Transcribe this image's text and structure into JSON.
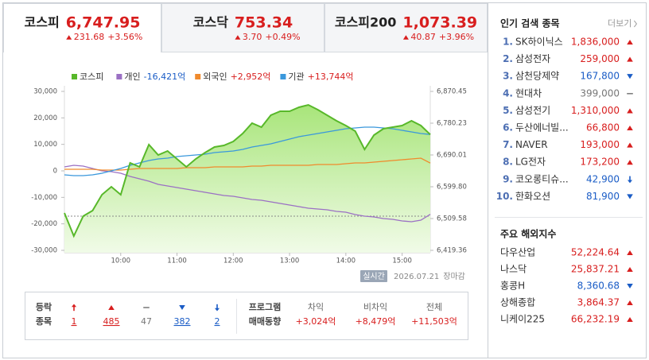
{
  "tabs": [
    {
      "name": "코스피",
      "value": "6,747.95",
      "change": "231.68",
      "rate": "+3.56%",
      "dir": "up",
      "selected": true
    },
    {
      "name": "코스닥",
      "value": "753.34",
      "change": "3.70",
      "rate": "+0.49%",
      "dir": "up",
      "selected": false
    },
    {
      "name": "코스피200",
      "value": "1,073.39",
      "change": "40.87",
      "rate": "+3.96%",
      "dir": "up",
      "selected": false
    }
  ],
  "chart_data": {
    "type": "line",
    "x": [
      "09:00",
      "09:10",
      "09:20",
      "09:30",
      "09:40",
      "09:50",
      "10:00",
      "10:10",
      "10:20",
      "10:30",
      "10:40",
      "10:50",
      "11:00",
      "11:10",
      "11:20",
      "11:30",
      "11:40",
      "11:50",
      "12:00",
      "12:10",
      "12:20",
      "12:30",
      "12:40",
      "12:50",
      "13:00",
      "13:10",
      "13:20",
      "13:30",
      "13:40",
      "13:50",
      "14:00",
      "14:10",
      "14:20",
      "14:30",
      "14:40",
      "14:50",
      "15:00",
      "15:10",
      "15:20",
      "15:30"
    ],
    "xlim": [
      "09:00",
      "15:30"
    ],
    "xticks": [
      "10:00",
      "11:00",
      "12:00",
      "13:00",
      "14:00",
      "15:00"
    ],
    "ylim": [
      -30000,
      30000
    ],
    "yticks": [
      {
        "value": 30000,
        "label": "30,000"
      },
      {
        "value": 20000,
        "label": "20,000"
      },
      {
        "value": 10000,
        "label": "10,000"
      },
      0,
      {
        "value": -10000,
        "label": "-10,000"
      },
      {
        "value": -20000,
        "label": "-20,000"
      },
      {
        "value": -30000,
        "label": "-30,000"
      }
    ],
    "y2lim": [
      6419.36,
      6870.45
    ],
    "y2ticks": [
      {
        "value": 6870.45,
        "label": "6,870.45"
      },
      {
        "value": 6780.23,
        "label": "6,780.23"
      },
      {
        "value": 6690.01,
        "label": "6,690.01"
      },
      {
        "value": 6599.8,
        "label": "6,599.80"
      },
      {
        "value": 6509.58,
        "label": "6,509.58"
      },
      {
        "value": 6419.36,
        "label": "6,419.36"
      }
    ],
    "prev_close": 6516.27,
    "series": [
      {
        "name": "코스피",
        "color": "#58b82a",
        "axis": "y2",
        "area": true,
        "values": [
          6525.4,
          6460.0,
          6516.3,
          6532.1,
          6577.2,
          6599.8,
          6577.2,
          6667.5,
          6656.2,
          6719.3,
          6690.0,
          6701.3,
          6678.7,
          6656.2,
          6678.7,
          6696.8,
          6712.6,
          6717.1,
          6728.4,
          6751.0,
          6780.2,
          6769.0,
          6802.8,
          6814.1,
          6814.1,
          6825.3,
          6832.1,
          6818.6,
          6802.8,
          6787.0,
          6773.5,
          6757.7,
          6705.8,
          6746.4,
          6764.5,
          6769.0,
          6773.5,
          6787.0,
          6773.5,
          6747.95
        ]
      },
      {
        "name": "개인",
        "net_label": "-16,421억",
        "net_dir": "down",
        "color": "#9b70c4",
        "values": [
          1500,
          2100,
          1800,
          900,
          0,
          -300,
          -900,
          -2100,
          -3000,
          -3900,
          -5100,
          -5700,
          -6300,
          -6900,
          -7500,
          -8100,
          -8700,
          -9300,
          -9600,
          -10200,
          -10800,
          -11100,
          -11700,
          -12300,
          -12900,
          -13500,
          -14100,
          -14400,
          -14700,
          -15300,
          -15600,
          -16500,
          -17100,
          -17400,
          -18000,
          -18300,
          -18900,
          -19200,
          -18600,
          -16421
        ]
      },
      {
        "name": "외국인",
        "net_label": "+2,952억",
        "net_dir": "up",
        "color": "#f08a2c",
        "values": [
          600,
          600,
          600,
          600,
          300,
          300,
          300,
          600,
          900,
          900,
          900,
          900,
          900,
          1200,
          1200,
          1200,
          1500,
          1500,
          1500,
          1500,
          1800,
          1800,
          2100,
          2100,
          2100,
          2100,
          2100,
          2400,
          2400,
          2400,
          2700,
          3000,
          3000,
          3300,
          3600,
          3900,
          4200,
          4500,
          4800,
          2952
        ]
      },
      {
        "name": "기관",
        "net_label": "+13,744억",
        "net_dir": "up",
        "color": "#3a98dc",
        "values": [
          -1500,
          -1800,
          -1800,
          -1500,
          -900,
          0,
          900,
          2100,
          3000,
          3900,
          4500,
          4800,
          5400,
          5700,
          6000,
          6300,
          6900,
          7200,
          7500,
          8100,
          9000,
          9600,
          10200,
          11100,
          12000,
          12900,
          13500,
          14100,
          14700,
          15300,
          15900,
          16200,
          16500,
          16500,
          16200,
          15900,
          15300,
          14700,
          14100,
          13744
        ]
      }
    ],
    "status_badge": "실시간",
    "date": "2026.07.21",
    "status": "장마감"
  },
  "breadth": {
    "label_lines": [
      "등락",
      "종목"
    ],
    "items": [
      {
        "dir": "limit_up",
        "count": "1"
      },
      {
        "dir": "up",
        "count": "485"
      },
      {
        "dir": "flat",
        "count": "47"
      },
      {
        "dir": "down",
        "count": "382"
      },
      {
        "dir": "limit_down",
        "count": "2"
      }
    ]
  },
  "program": {
    "label_lines": [
      "프로그램",
      "매매동향"
    ],
    "items": [
      {
        "name": "차익",
        "value": "+3,024억"
      },
      {
        "name": "비차익",
        "value": "+8,479억"
      },
      {
        "name": "전체",
        "value": "+11,503억"
      }
    ]
  },
  "popular": {
    "title": "인기 검색 종목",
    "more": "더보기",
    "items": [
      {
        "rank": "1.",
        "name": "SK하이닉스",
        "price": "1,836,000",
        "dir": "up"
      },
      {
        "rank": "2.",
        "name": "삼성전자",
        "price": "259,000",
        "dir": "up"
      },
      {
        "rank": "3.",
        "name": "삼천당제약",
        "price": "167,800",
        "dir": "down"
      },
      {
        "rank": "4.",
        "name": "현대차",
        "price": "399,000",
        "dir": "flat"
      },
      {
        "rank": "5.",
        "name": "삼성전기",
        "price": "1,310,000",
        "dir": "up"
      },
      {
        "rank": "6.",
        "name": "두산에너빌...",
        "price": "66,800",
        "dir": "up"
      },
      {
        "rank": "7.",
        "name": "NAVER",
        "price": "193,000",
        "dir": "up"
      },
      {
        "rank": "8.",
        "name": "LG전자",
        "price": "173,200",
        "dir": "up"
      },
      {
        "rank": "9.",
        "name": "코오롱티슈...",
        "price": "42,900",
        "dir": "limit_down"
      },
      {
        "rank": "10.",
        "name": "한화오션",
        "price": "81,900",
        "dir": "down"
      }
    ]
  },
  "world": {
    "title": "주요 해외지수",
    "items": [
      {
        "name": "다우산업",
        "value": "52,224.64",
        "dir": "up"
      },
      {
        "name": "나스닥",
        "value": "25,837.21",
        "dir": "up"
      },
      {
        "name": "홍콩H",
        "value": "8,360.68",
        "dir": "down"
      },
      {
        "name": "상해종합",
        "value": "3,864.37",
        "dir": "up"
      },
      {
        "name": "니케이225",
        "value": "66,232.19",
        "dir": "up"
      }
    ]
  }
}
